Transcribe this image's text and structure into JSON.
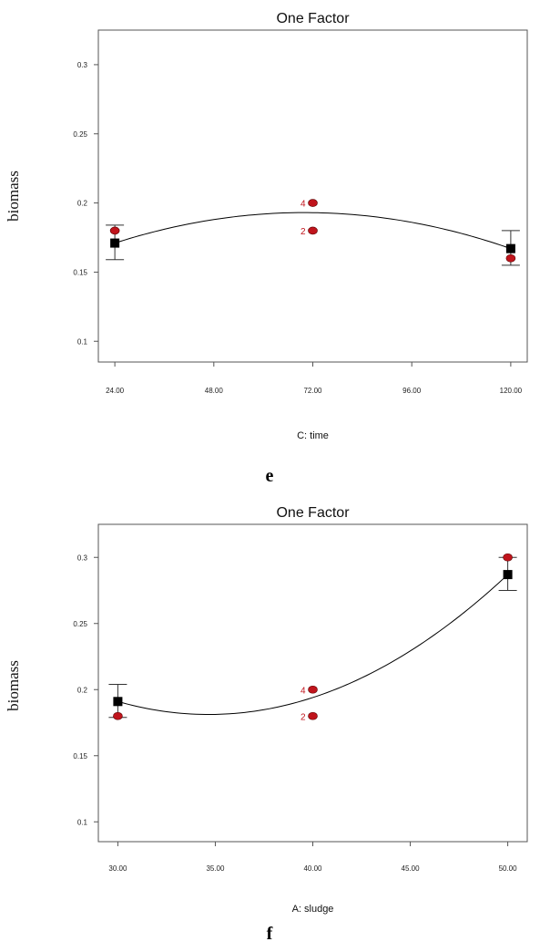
{
  "figures": [
    {
      "panel_label": "e",
      "chart_data": {
        "type": "scatter",
        "title": "One Factor",
        "xlabel": "C: time",
        "ylabel": "biomass",
        "xlim": [
          20,
          124
        ],
        "ylim": [
          0.085,
          0.325
        ],
        "x_ticks": [
          24,
          48,
          72,
          96,
          120
        ],
        "x_tick_labels": [
          "24.00",
          "48.00",
          "72.00",
          "96.00",
          "120.00"
        ],
        "y_ticks": [
          0.1,
          0.15,
          0.2,
          0.25,
          0.3
        ],
        "y_tick_labels": [
          "0.1",
          "0.15",
          "0.2",
          "0.25",
          "0.3"
        ],
        "observed_points": [
          {
            "x": 24,
            "y": 0.18,
            "label": ""
          },
          {
            "x": 72,
            "y": 0.2,
            "label": "4"
          },
          {
            "x": 72,
            "y": 0.18,
            "label": "2"
          },
          {
            "x": 120,
            "y": 0.16,
            "label": ""
          }
        ],
        "predicted_points": [
          {
            "x": 24,
            "y": 0.171,
            "err_low": 0.159,
            "err_high": 0.184
          },
          {
            "x": 120,
            "y": 0.167,
            "err_low": 0.155,
            "err_high": 0.18
          }
        ],
        "fit_curve": {
          "type": "quadratic",
          "x": [
            24,
            72,
            120
          ],
          "y": [
            0.171,
            0.193,
            0.167
          ]
        },
        "colors": {
          "observed": "#c0141c",
          "predicted": "#000000",
          "curve": "#000000",
          "frame": "#555555"
        }
      }
    },
    {
      "panel_label": "f",
      "chart_data": {
        "type": "scatter",
        "title": "One Factor",
        "xlabel": "A: sludge",
        "ylabel": "biomass",
        "xlim": [
          29,
          51
        ],
        "ylim": [
          0.085,
          0.325
        ],
        "x_ticks": [
          30,
          35,
          40,
          45,
          50
        ],
        "x_tick_labels": [
          "30.00",
          "35.00",
          "40.00",
          "45.00",
          "50.00"
        ],
        "y_ticks": [
          0.1,
          0.15,
          0.2,
          0.25,
          0.3
        ],
        "y_tick_labels": [
          "0.1",
          "0.15",
          "0.2",
          "0.25",
          "0.3"
        ],
        "observed_points": [
          {
            "x": 30,
            "y": 0.18,
            "label": ""
          },
          {
            "x": 40,
            "y": 0.2,
            "label": "4"
          },
          {
            "x": 40,
            "y": 0.18,
            "label": "2"
          },
          {
            "x": 50,
            "y": 0.3,
            "label": ""
          }
        ],
        "predicted_points": [
          {
            "x": 30,
            "y": 0.191,
            "err_low": 0.179,
            "err_high": 0.204
          },
          {
            "x": 50,
            "y": 0.287,
            "err_low": 0.275,
            "err_high": 0.3
          }
        ],
        "fit_curve": {
          "type": "quadratic",
          "x": [
            30,
            40,
            50
          ],
          "y": [
            0.191,
            0.194,
            0.287
          ]
        },
        "colors": {
          "observed": "#c0141c",
          "predicted": "#000000",
          "curve": "#000000",
          "frame": "#555555"
        }
      }
    }
  ]
}
